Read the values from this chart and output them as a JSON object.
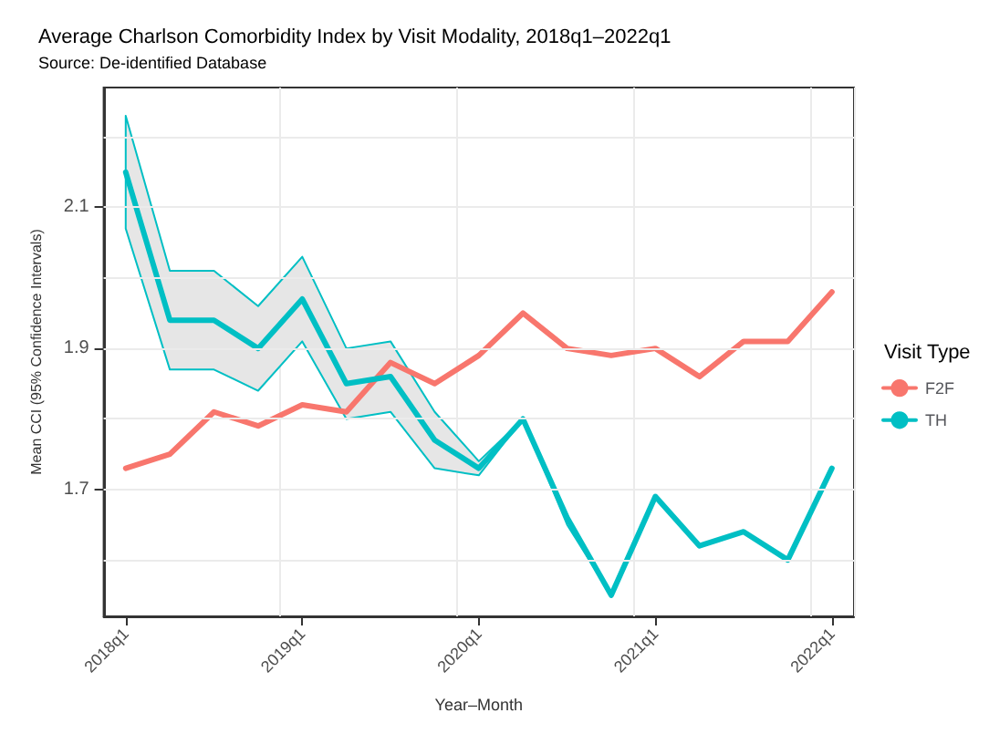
{
  "chart_data": {
    "type": "line",
    "title": "Average Charlson Comorbidity Index by Visit Modality, 2018q1–2022q1",
    "subtitle": "Source: De-identified Database",
    "xlabel": "Year–Month",
    "ylabel": "Mean CCI (95% Confidence Intervals)",
    "legend_title": "Visit Type",
    "categories": [
      "2018q1",
      null,
      null,
      null,
      "2019q1",
      null,
      null,
      null,
      "2020q1",
      null,
      null,
      null,
      "2021q1",
      null,
      null,
      null,
      "2022q1"
    ],
    "series": [
      {
        "name": "F2F",
        "color": "#f8766d",
        "values": [
          1.73,
          1.75,
          1.81,
          1.79,
          1.82,
          1.81,
          1.88,
          1.85,
          1.89,
          1.95,
          1.9,
          1.89,
          1.9,
          1.86,
          1.91,
          1.91,
          1.98
        ]
      },
      {
        "name": "TH",
        "color": "#00bfc4",
        "values": [
          2.15,
          1.94,
          1.94,
          1.9,
          1.97,
          1.85,
          1.86,
          1.77,
          1.73,
          1.8,
          1.66,
          1.55,
          1.69,
          1.62,
          1.64,
          1.6,
          1.73
        ],
        "lower": [
          2.07,
          1.87,
          1.87,
          1.84,
          1.91,
          1.8,
          1.81,
          1.73,
          1.72,
          1.8,
          1.65,
          1.55,
          1.69,
          1.62,
          1.64,
          1.6,
          1.73
        ],
        "upper": [
          2.23,
          2.01,
          2.01,
          1.96,
          2.03,
          1.9,
          1.91,
          1.81,
          1.74,
          1.8,
          1.66,
          1.55,
          1.69,
          1.62,
          1.64,
          1.6,
          1.73
        ]
      }
    ],
    "ylim": [
      1.52,
      2.27
    ],
    "yticks": [
      {
        "value": 1.6,
        "label": null
      },
      1.7,
      {
        "value": 1.8,
        "label": null
      },
      1.9,
      {
        "value": 2.0,
        "label": null
      },
      2.1,
      {
        "value": 2.2,
        "label": null
      }
    ],
    "grid": true,
    "legend": "right",
    "marker": "none",
    "line_style": "solid"
  }
}
